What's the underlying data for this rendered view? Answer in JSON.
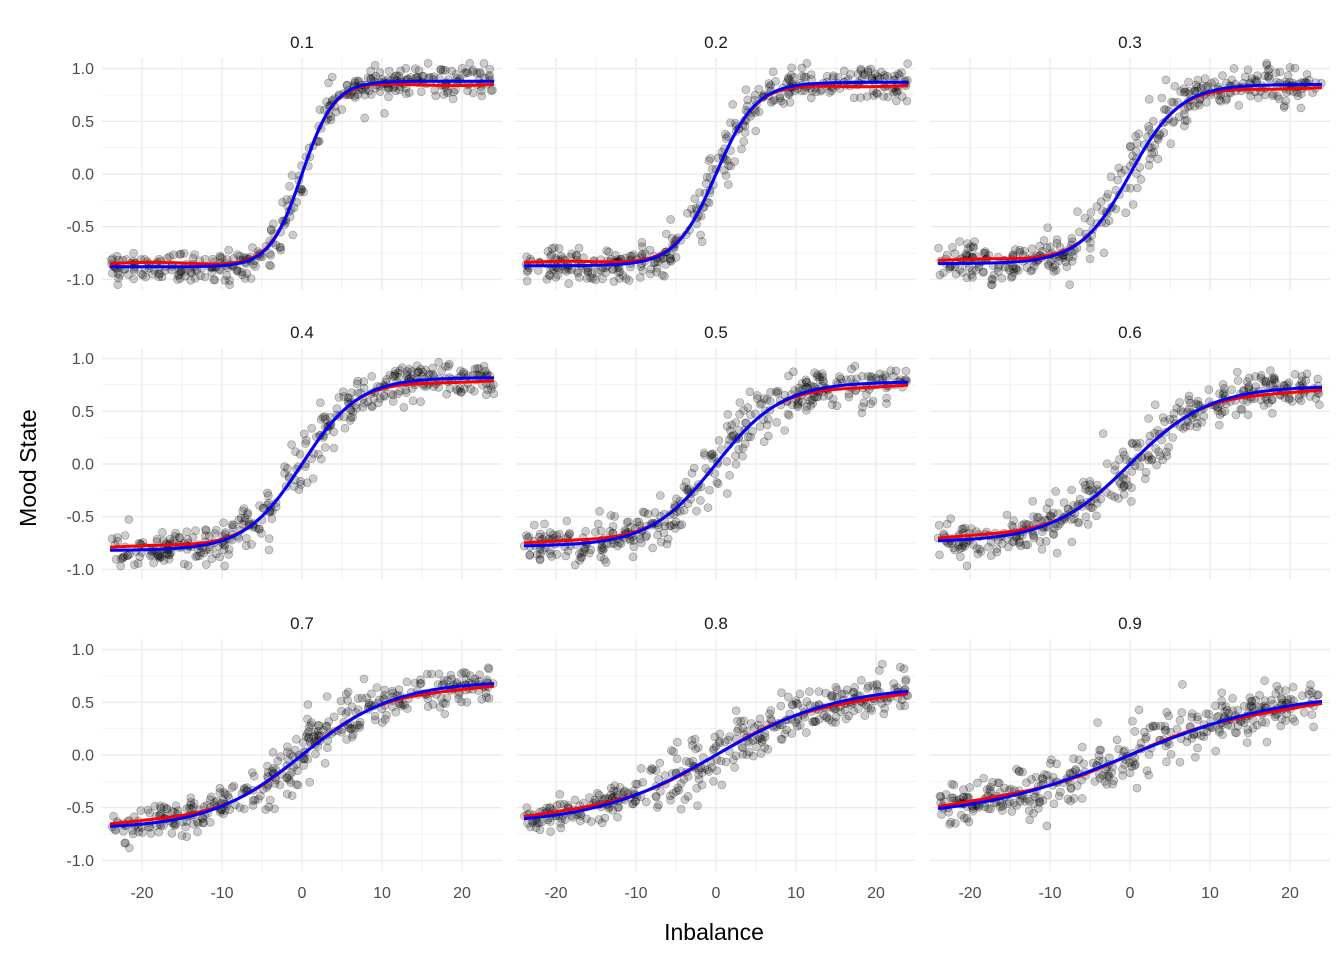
{
  "chart_data": {
    "type": "scatter",
    "xlabel": "Inbalance",
    "ylabel": "Mood State",
    "xlim": [
      -25,
      25
    ],
    "ylim": [
      -1.0,
      1.0
    ],
    "x_ticks": [
      -20,
      -10,
      0,
      10,
      20
    ],
    "x_tick_labels": [
      "-20",
      "-10",
      "0",
      "10",
      "20"
    ],
    "y_ticks": [
      -1.0,
      -0.5,
      0.0,
      0.5,
      1.0
    ],
    "y_tick_labels": [
      "-1.0",
      "-0.5",
      "0.0",
      "0.5",
      "1.0"
    ],
    "grid": true,
    "point_color": "#000000",
    "point_opacity": 0.2,
    "fit_colors": [
      "#ff0000",
      "#0000ff"
    ],
    "panels": [
      {
        "label": "0.1",
        "amplitude": 0.88,
        "steepness": 0.25,
        "spread": 0.12
      },
      {
        "label": "0.2",
        "amplitude": 0.87,
        "steepness": 0.2,
        "spread": 0.14
      },
      {
        "label": "0.3",
        "amplitude": 0.85,
        "steepness": 0.16,
        "spread": 0.14
      },
      {
        "label": "0.4",
        "amplitude": 0.82,
        "steepness": 0.14,
        "spread": 0.14
      },
      {
        "label": "0.5",
        "amplitude": 0.78,
        "steepness": 0.12,
        "spread": 0.14
      },
      {
        "label": "0.6",
        "amplitude": 0.74,
        "steepness": 0.1,
        "spread": 0.14
      },
      {
        "label": "0.7",
        "amplitude": 0.7,
        "steepness": 0.085,
        "spread": 0.13
      },
      {
        "label": "0.8",
        "amplitude": 0.66,
        "steepness": 0.065,
        "spread": 0.13
      },
      {
        "label": "0.9",
        "amplitude": 0.6,
        "steepness": 0.052,
        "spread": 0.13
      }
    ]
  }
}
